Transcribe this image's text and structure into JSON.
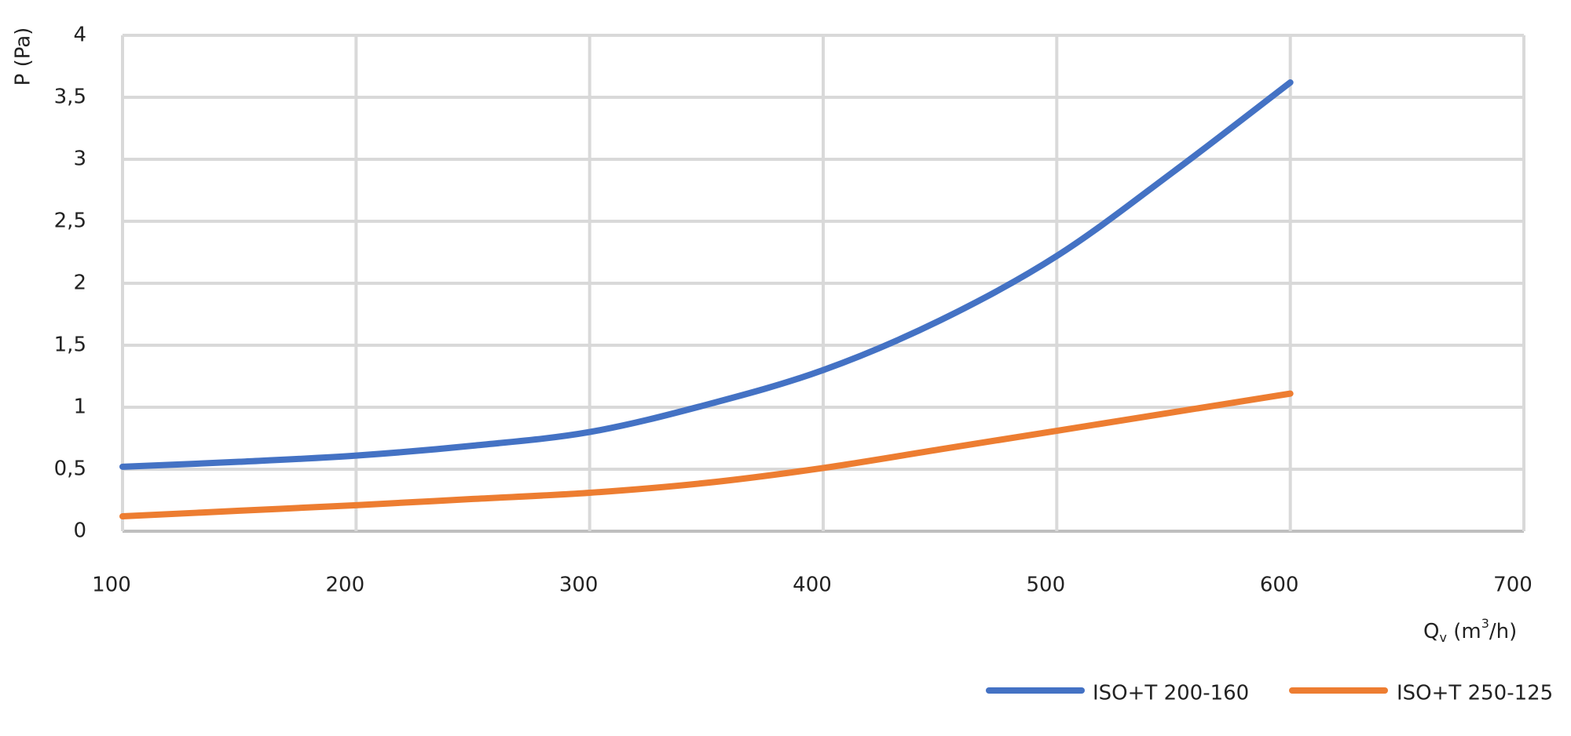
{
  "chart_data": {
    "type": "line",
    "y_label": "P (Pa)",
    "x_label_parts": [
      "Q",
      "v",
      " (m",
      "3",
      "/h)"
    ],
    "x": [
      100,
      150,
      200,
      250,
      300,
      350,
      400,
      450,
      500,
      550,
      600
    ],
    "series": [
      {
        "name": "ISO+T 200-160",
        "color": "#4472c4",
        "values": [
          0.52,
          0.56,
          0.61,
          0.69,
          0.8,
          1.02,
          1.3,
          1.7,
          2.22,
          2.9,
          3.62
        ]
      },
      {
        "name": "ISO+T 250-125",
        "color": "#ed7d31",
        "values": [
          0.12,
          0.165,
          0.21,
          0.26,
          0.31,
          0.39,
          0.51,
          0.66,
          0.81,
          0.96,
          1.11
        ]
      }
    ],
    "xlim": [
      100,
      700
    ],
    "xticks": [
      100,
      200,
      300,
      400,
      500,
      600,
      700
    ],
    "ylim": [
      0,
      4
    ],
    "yticks": [
      0,
      {
        "value": 0.5,
        "label": "0,5"
      },
      1,
      {
        "value": 1.5,
        "label": "1,5"
      },
      2,
      {
        "value": 2.5,
        "label": "2,5"
      },
      3,
      {
        "value": 3.5,
        "label": "3,5"
      },
      4
    ],
    "grid": true,
    "legend": "bottom-right"
  }
}
